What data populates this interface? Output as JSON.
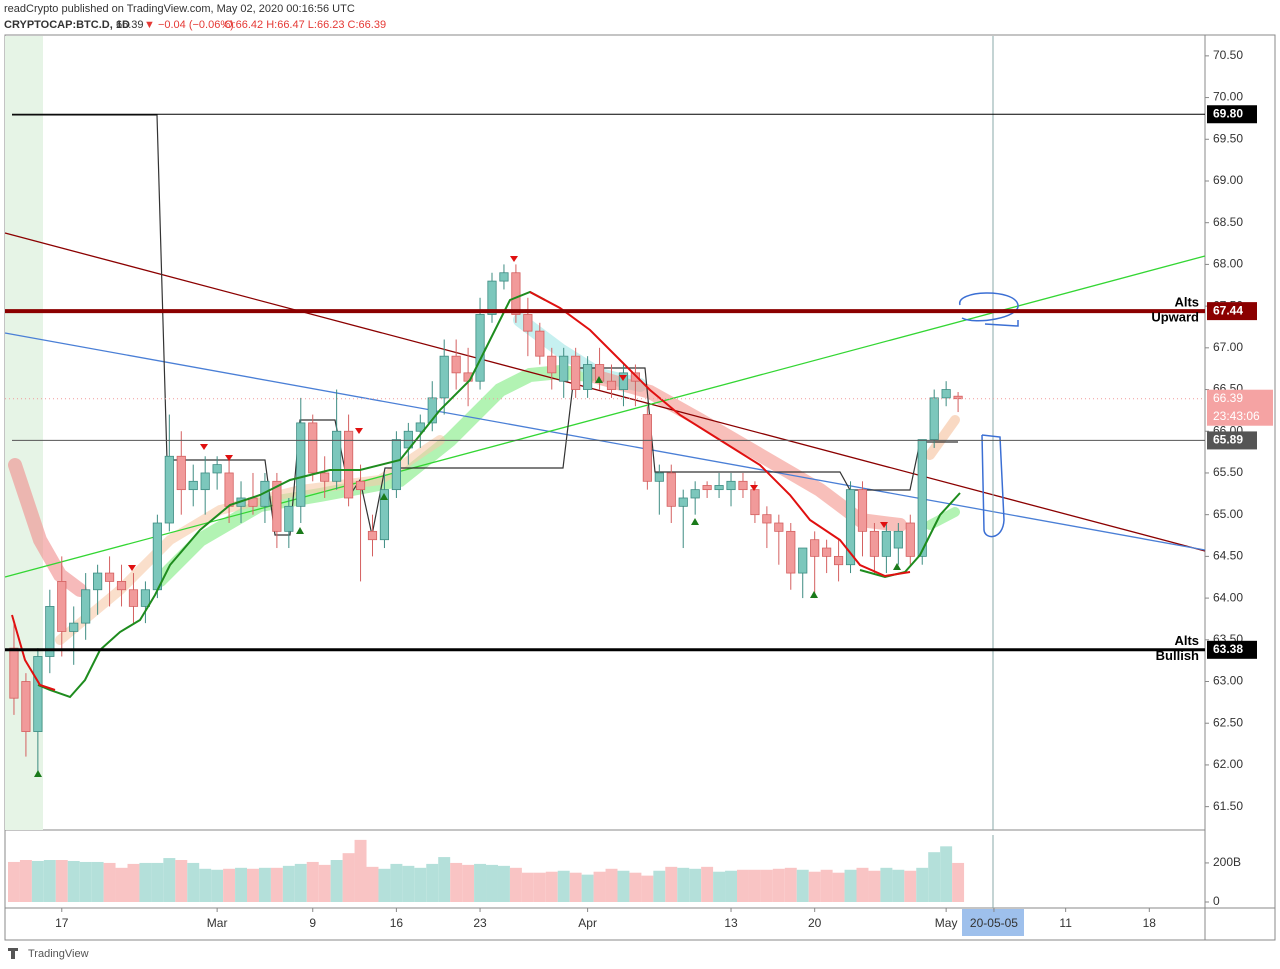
{
  "header": {
    "publisher": "readCrypto published on TradingView.com, May 02, 2020 00:16:56 UTC",
    "symbol": "CRYPTOCAP:BTC.D, 1D",
    "last": "66.39",
    "change": "▼ −0.04 (−0.06%)",
    "ohlc": "O:66.42 H:66.47 L:66.23 C:66.39"
  },
  "footer": "TradingView",
  "chart_data": {
    "type": "candlestick",
    "up_color": "#7cc7bc",
    "down_color": "#f19a9a",
    "open": [
      63.4,
      63.0,
      62.4,
      63.3,
      64.2,
      63.6,
      63.7,
      64.1,
      64.3,
      64.2,
      64.1,
      63.9,
      64.1,
      64.9,
      65.7,
      65.3,
      65.3,
      65.5,
      65.5,
      65.1,
      65.2,
      65.1,
      65.4,
      64.8,
      65.1,
      66.1,
      65.5,
      65.4,
      66.0,
      65.4,
      64.8,
      64.7,
      65.3,
      65.8,
      66.0,
      66.1,
      66.4,
      66.9,
      66.7,
      66.6,
      67.4,
      67.8,
      67.9,
      67.4,
      67.2,
      66.9,
      66.6,
      66.9,
      66.5,
      66.8,
      66.6,
      66.5,
      66.7,
      66.2,
      65.4,
      65.5,
      65.1,
      65.2,
      65.35,
      65.3,
      65.3,
      65.4,
      65.3,
      65.0,
      64.9,
      64.8,
      64.3,
      64.7,
      64.6,
      64.5,
      64.4,
      65.3,
      64.8,
      64.5,
      64.6,
      64.9,
      64.5,
      65.9,
      66.4,
      66.42
    ],
    "high": [
      63.7,
      63.1,
      63.4,
      64.1,
      64.5,
      63.9,
      64.3,
      64.4,
      64.5,
      64.4,
      64.3,
      64.2,
      65.0,
      66.2,
      66.0,
      65.6,
      65.7,
      65.7,
      65.7,
      65.4,
      65.5,
      65.5,
      65.5,
      65.2,
      66.4,
      66.2,
      65.7,
      66.5,
      66.2,
      65.6,
      65.0,
      65.5,
      66.0,
      66.1,
      66.2,
      66.6,
      67.1,
      67.1,
      67.0,
      67.6,
      67.9,
      68.0,
      68.0,
      67.6,
      67.3,
      67.0,
      67.0,
      67.0,
      66.9,
      67.0,
      66.8,
      66.8,
      66.8,
      66.3,
      65.6,
      65.6,
      65.3,
      65.4,
      65.4,
      65.5,
      65.5,
      65.5,
      65.4,
      65.1,
      65.0,
      64.9,
      64.6,
      64.8,
      64.7,
      64.7,
      65.4,
      65.4,
      64.9,
      64.9,
      64.9,
      65.0,
      65.9,
      66.5,
      66.6,
      66.47
    ],
    "low": [
      62.6,
      62.1,
      61.9,
      63.1,
      63.3,
      63.2,
      63.5,
      63.8,
      63.9,
      63.9,
      63.7,
      63.7,
      64.0,
      64.8,
      65.0,
      65.1,
      65.0,
      65.3,
      64.9,
      64.9,
      65.0,
      64.9,
      64.6,
      64.6,
      64.9,
      65.4,
      65.2,
      65.3,
      65.1,
      64.2,
      64.5,
      64.6,
      65.2,
      65.6,
      65.8,
      66.0,
      66.2,
      66.5,
      66.3,
      66.5,
      67.3,
      67.7,
      67.3,
      66.9,
      66.8,
      66.5,
      66.4,
      66.4,
      66.4,
      66.5,
      66.4,
      66.3,
      66.3,
      65.3,
      65.0,
      64.9,
      64.6,
      65.0,
      65.2,
      65.2,
      65.1,
      65.2,
      64.9,
      64.6,
      64.4,
      64.1,
      64.0,
      64.0,
      64.3,
      64.2,
      64.3,
      64.5,
      64.3,
      64.3,
      64.4,
      64.4,
      64.4,
      65.8,
      66.3,
      66.23
    ],
    "close": [
      62.8,
      62.4,
      63.3,
      63.9,
      63.6,
      63.7,
      64.1,
      64.3,
      64.2,
      64.1,
      63.9,
      64.1,
      64.9,
      65.7,
      65.3,
      65.4,
      65.5,
      65.6,
      65.1,
      65.2,
      65.1,
      65.4,
      64.8,
      65.1,
      66.1,
      65.5,
      65.4,
      66.0,
      65.2,
      65.3,
      64.7,
      65.3,
      65.9,
      66.0,
      66.1,
      66.4,
      66.9,
      66.7,
      66.6,
      67.4,
      67.8,
      67.9,
      67.4,
      67.2,
      66.9,
      66.7,
      66.9,
      66.5,
      66.8,
      66.6,
      66.5,
      66.7,
      66.6,
      65.4,
      65.5,
      65.1,
      65.2,
      65.3,
      65.3,
      65.35,
      65.4,
      65.3,
      65.0,
      64.9,
      64.8,
      64.3,
      64.6,
      64.5,
      64.5,
      64.4,
      65.3,
      64.8,
      64.5,
      64.8,
      64.8,
      64.5,
      65.9,
      66.4,
      66.5,
      66.39
    ],
    "xlim": [
      -0.75,
      99.66
    ],
    "xticks": [
      {
        "value": 4,
        "label": "17"
      },
      {
        "value": 17,
        "label": "Mar"
      },
      {
        "value": 25,
        "label": "9"
      },
      {
        "value": 32,
        "label": "16"
      },
      {
        "value": 39,
        "label": "23"
      },
      {
        "value": 48,
        "label": "Apr"
      },
      {
        "value": 60,
        "label": "13"
      },
      {
        "value": 67,
        "label": "20"
      },
      {
        "value": 78,
        "label": "May"
      },
      {
        "value": 82,
        "label": "20-05-05"
      },
      {
        "value": 88,
        "label": "11"
      },
      {
        "value": 95,
        "label": "18"
      }
    ],
    "ylim": [
      61.22,
      70.75
    ],
    "yticks": [
      {
        "value": 61.5,
        "label": "61.50"
      },
      {
        "value": 62,
        "label": "62.00"
      },
      {
        "value": 62.5,
        "label": "62.50"
      },
      {
        "value": 63,
        "label": "63.00"
      },
      {
        "value": 63.5,
        "label": "63.50"
      },
      {
        "value": 64,
        "label": "64.00"
      },
      {
        "value": 64.5,
        "label": "64.50"
      },
      {
        "value": 65,
        "label": "65.00"
      },
      {
        "value": 65.5,
        "label": "65.50"
      },
      {
        "value": 66,
        "label": "66.00"
      },
      {
        "value": 66.5,
        "label": "66.50"
      },
      {
        "value": 67,
        "label": "67.00"
      },
      {
        "value": 67.5,
        "label": "67.50"
      },
      {
        "value": 68,
        "label": "68.00"
      },
      {
        "value": 68.5,
        "label": "68.50"
      },
      {
        "value": 69,
        "label": "69.00"
      },
      {
        "value": 69.5,
        "label": "69.50"
      },
      {
        "value": 70,
        "label": "70.00"
      },
      {
        "value": 70.5,
        "label": "70.50"
      }
    ],
    "levels": [
      {
        "value": 69.8,
        "label": "69.80",
        "color": "#000000"
      },
      {
        "value": 67.44,
        "label": "67.44",
        "color": "#8b0000",
        "note": [
          "Alts",
          "Upward"
        ]
      },
      {
        "value": 65.89,
        "label": "65.89",
        "color": "#555555"
      },
      {
        "value": 63.38,
        "label": "63.38",
        "color": "#000000",
        "note": [
          "Alts",
          "Bullish"
        ]
      }
    ],
    "last_price": {
      "value": 66.39,
      "label": "66.39",
      "countdown": "23:43:06"
    },
    "volume": {
      "values": [
        205,
        215,
        210,
        215,
        215,
        210,
        205,
        205,
        200,
        175,
        195,
        200,
        200,
        225,
        215,
        200,
        170,
        165,
        170,
        175,
        170,
        175,
        175,
        185,
        195,
        205,
        190,
        215,
        250,
        318,
        180,
        170,
        195,
        185,
        175,
        195,
        230,
        200,
        190,
        195,
        190,
        185,
        175,
        150,
        150,
        155,
        160,
        150,
        140,
        155,
        170,
        160,
        150,
        135,
        160,
        180,
        175,
        170,
        180,
        155,
        160,
        165,
        165,
        165,
        170,
        175,
        165,
        155,
        165,
        150,
        165,
        175,
        160,
        175,
        165,
        160,
        175,
        255,
        285,
        200
      ],
      "ylim": [
        0,
        343
      ],
      "yticks": [
        0,
        {
          "value": 200,
          "label": "200B"
        }
      ]
    }
  }
}
